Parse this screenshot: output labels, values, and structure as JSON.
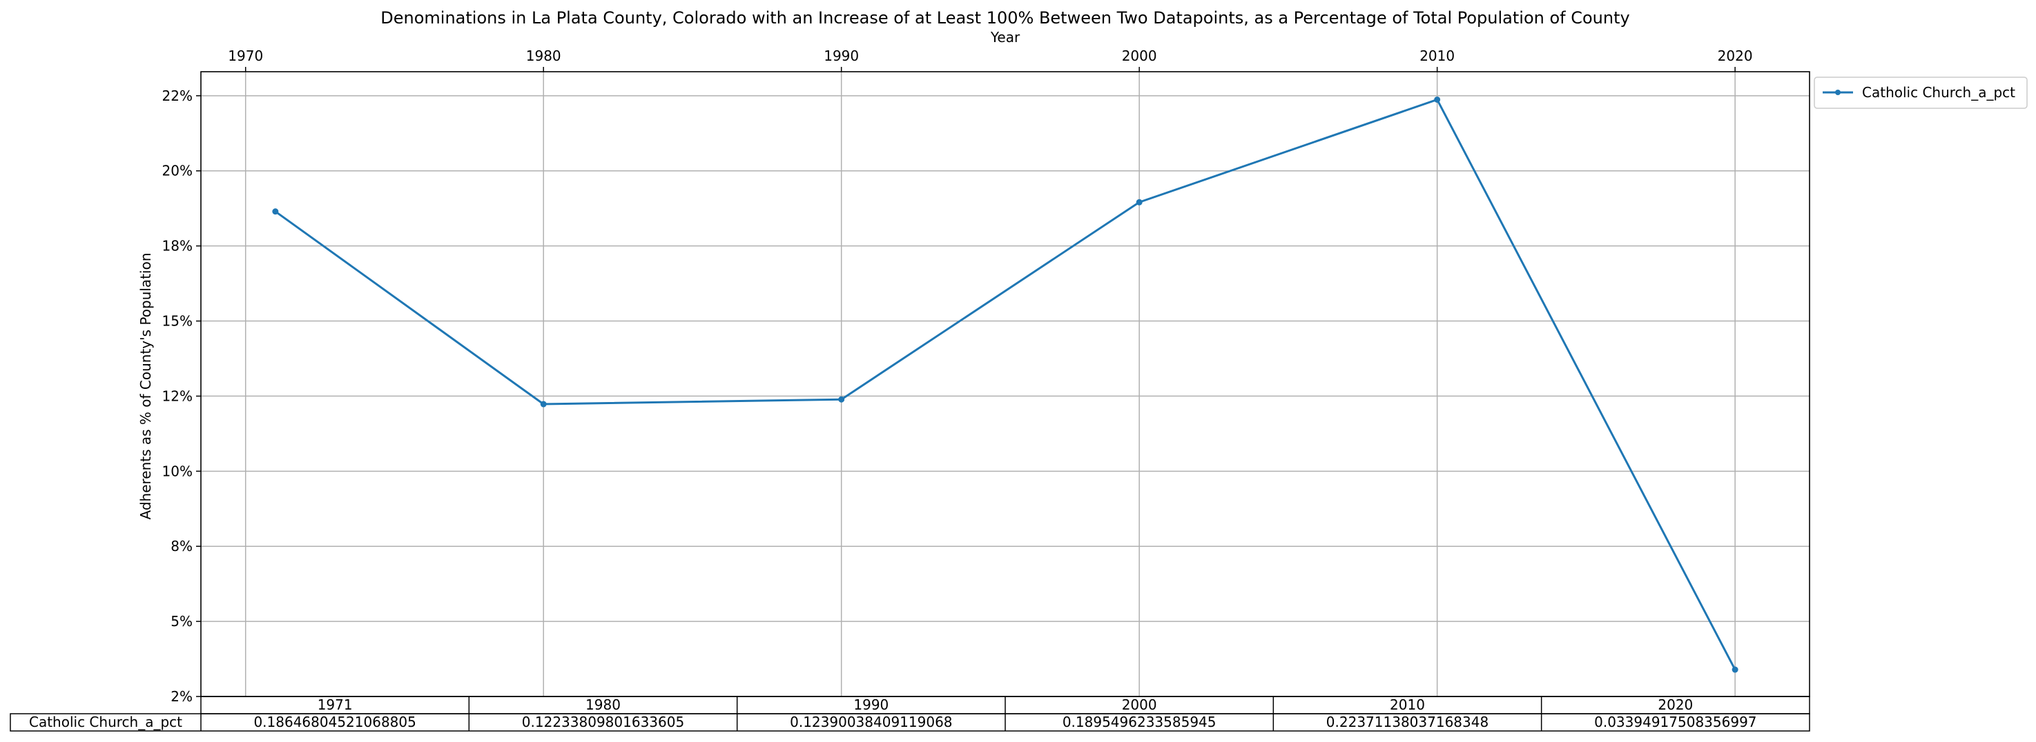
{
  "chart_data": {
    "type": "line",
    "title": "Denominations in La Plata County, Colorado with an Increase of at Least 100% Between Two Datapoints, as a Percentage of Total Population of County",
    "xlabel": "Year",
    "ylabel": "Adherents as % of County's Population",
    "x_axis_position": "top",
    "x_ticks": [
      1970,
      1980,
      1990,
      2000,
      2010,
      2020
    ],
    "xlim": [
      1968.5,
      2022.5
    ],
    "y_ticks": [
      0.025,
      0.05,
      0.075,
      0.1,
      0.125,
      0.15,
      0.175,
      0.2,
      0.225
    ],
    "y_tick_labels": [
      "2%",
      "5%",
      "8%",
      "10%",
      "12%",
      "15%",
      "18%",
      "20%",
      "22%"
    ],
    "ylim": [
      0.025,
      0.233
    ],
    "grid": true,
    "legend_position": "outside top-right",
    "series": [
      {
        "name": "Catholic Church_a_pct",
        "color": "#1f77b4",
        "marker": "circle",
        "x": [
          1971,
          1980,
          1990,
          2000,
          2010,
          2020
        ],
        "y": [
          0.18646804521068805,
          0.12233809801633605,
          0.12390038409119068,
          0.1895496233585945,
          0.22371138037168348,
          0.03394917508356997
        ]
      }
    ],
    "table": {
      "col_labels": [
        "1971",
        "1980",
        "1990",
        "2000",
        "2010",
        "2020"
      ],
      "row_label": "Catholic Church_a_pct",
      "cells": [
        "0.18646804521068805",
        "0.12233809801633605",
        "0.12390038409119068",
        "0.1895496233585945",
        "0.22371138037168348",
        "0.03394917508356997"
      ]
    }
  }
}
